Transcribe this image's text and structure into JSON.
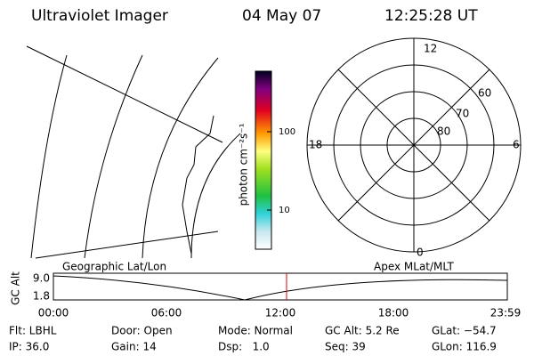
{
  "header": {
    "title": "Ultraviolet Imager",
    "date": "04 May 07",
    "time": "12:25:28 UT"
  },
  "colorbar": {
    "label": "photon cm⁻²s⁻¹",
    "ticks": [
      "100",
      "10"
    ]
  },
  "polar": {
    "mlt_labels": [
      "12",
      "6",
      "0",
      "18"
    ],
    "lat_labels": [
      "60",
      "70",
      "80"
    ]
  },
  "timeline": {
    "left_label": "Geographic Lat/Lon",
    "right_label": "Apex MLat/MLT",
    "y_label": "GC Alt",
    "y_ticks": [
      "9.0",
      "1.8"
    ],
    "x_ticks": [
      "00:00",
      "06:00",
      "12:00",
      "18:00",
      "23:59"
    ]
  },
  "info": {
    "rows": [
      [
        "Flt: LBHL",
        "Door: Open",
        "Mode: Normal",
        "GC Alt: 5.2 Re",
        "GLat: −54.7"
      ],
      [
        "IP: 36.0",
        "Gain: 14",
        "Dsp:   1.0",
        "Seq: 39",
        "GLon: 116.9"
      ]
    ]
  }
}
